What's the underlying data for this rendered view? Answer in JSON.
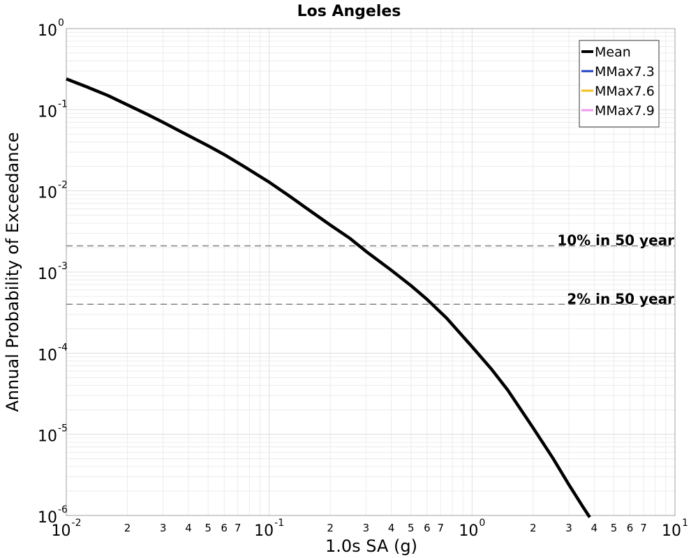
{
  "chart_data": {
    "type": "line",
    "title": "Los Angeles",
    "xlabel": "1.0s SA (g)",
    "ylabel": "Annual Probability of Exceedance",
    "x_scale": "log",
    "y_scale": "log",
    "xlim": [
      0.01,
      10
    ],
    "ylim": [
      1e-06,
      1
    ],
    "grid": true,
    "legend_position": "top-right",
    "x_major_ticks": [
      {
        "base": "10",
        "exp": "-2",
        "value": 0.01
      },
      {
        "base": "10",
        "exp": "-1",
        "value": 0.1
      },
      {
        "base": "10",
        "exp": "0",
        "value": 1
      },
      {
        "base": "10",
        "exp": "1",
        "value": 10
      }
    ],
    "x_minor_ticks": [
      {
        "label": "2",
        "value": 0.02
      },
      {
        "label": "3",
        "value": 0.03
      },
      {
        "label": "4",
        "value": 0.04
      },
      {
        "label": "5",
        "value": 0.05
      },
      {
        "label": "6",
        "value": 0.06
      },
      {
        "label": "7",
        "value": 0.07
      },
      {
        "label": "2",
        "value": 0.2
      },
      {
        "label": "3",
        "value": 0.3
      },
      {
        "label": "4",
        "value": 0.4
      },
      {
        "label": "5",
        "value": 0.5
      },
      {
        "label": "6",
        "value": 0.6
      },
      {
        "label": "7",
        "value": 0.7
      },
      {
        "label": "2",
        "value": 2
      },
      {
        "label": "3",
        "value": 3
      },
      {
        "label": "4",
        "value": 4
      },
      {
        "label": "5",
        "value": 5
      },
      {
        "label": "6",
        "value": 6
      },
      {
        "label": "7",
        "value": 7
      }
    ],
    "y_major_ticks": [
      {
        "base": "10",
        "exp": "0",
        "value": 1
      },
      {
        "base": "10",
        "exp": "-1",
        "value": 0.1
      },
      {
        "base": "10",
        "exp": "-2",
        "value": 0.01
      },
      {
        "base": "10",
        "exp": "-3",
        "value": 0.001
      },
      {
        "base": "10",
        "exp": "-4",
        "value": 0.0001
      },
      {
        "base": "10",
        "exp": "-5",
        "value": 1e-05
      },
      {
        "base": "10",
        "exp": "-6",
        "value": 1e-06
      }
    ],
    "reference_lines": [
      {
        "label": "10% in 50 year",
        "y": 0.0021,
        "color": "#808080"
      },
      {
        "label": "2% in 50 year",
        "y": 0.0004,
        "color": "#808080"
      }
    ],
    "series": [
      {
        "name": "Mean",
        "color": "#000000",
        "x": [
          0.01,
          0.0127,
          0.016,
          0.02,
          0.025,
          0.03,
          0.04,
          0.05,
          0.06,
          0.075,
          0.1,
          0.127,
          0.15,
          0.2,
          0.25,
          0.3,
          0.4,
          0.5,
          0.6,
          0.75,
          1.0,
          1.25,
          1.5,
          2.0,
          2.5,
          3.0,
          3.5,
          3.8
        ],
        "y": [
          0.24,
          0.19,
          0.15,
          0.115,
          0.088,
          0.07,
          0.048,
          0.036,
          0.028,
          0.02,
          0.0128,
          0.0085,
          0.0063,
          0.0038,
          0.0026,
          0.0018,
          0.00105,
          0.00068,
          0.00046,
          0.00027,
          0.00012,
          6.3e-05,
          3.5e-05,
          1.2e-05,
          5.1e-06,
          2.4e-06,
          1.3e-06,
          9.5e-07
        ],
        "visible": true
      },
      {
        "name": "MMax7.3",
        "color": "#1f3fbf",
        "visible": false
      },
      {
        "name": "MMax7.6",
        "color": "#f2c01e",
        "visible": false
      },
      {
        "name": "MMax7.9",
        "color": "#ee99ee",
        "visible": false
      }
    ]
  }
}
